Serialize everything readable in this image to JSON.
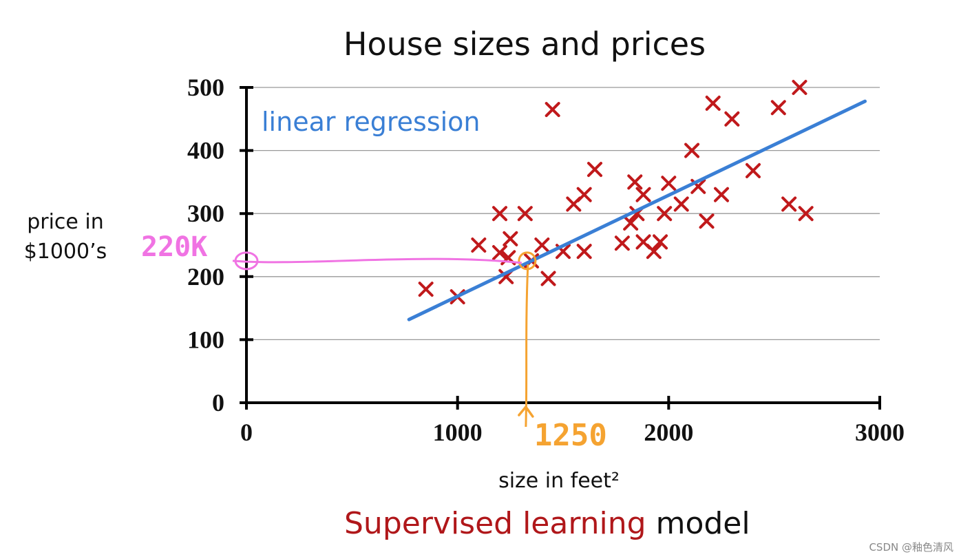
{
  "chart_data": {
    "type": "scatter",
    "title": "House sizes and prices",
    "xlabel": "size in feet²",
    "ylabel_line1": "price in",
    "ylabel_line2": "$1000’s",
    "xlim": [
      0,
      3000
    ],
    "ylim": [
      0,
      500
    ],
    "x_ticks": [
      0,
      1000,
      2000,
      3000
    ],
    "y_ticks": [
      0,
      100,
      200,
      300,
      400,
      500
    ],
    "grid": true,
    "points": [
      {
        "x": 850,
        "y": 180
      },
      {
        "x": 1000,
        "y": 168
      },
      {
        "x": 1100,
        "y": 250
      },
      {
        "x": 1200,
        "y": 300
      },
      {
        "x": 1200,
        "y": 238
      },
      {
        "x": 1230,
        "y": 200
      },
      {
        "x": 1250,
        "y": 260
      },
      {
        "x": 1240,
        "y": 230
      },
      {
        "x": 1320,
        "y": 300
      },
      {
        "x": 1350,
        "y": 225
      },
      {
        "x": 1400,
        "y": 250
      },
      {
        "x": 1430,
        "y": 197
      },
      {
        "x": 1450,
        "y": 465
      },
      {
        "x": 1500,
        "y": 240
      },
      {
        "x": 1550,
        "y": 315
      },
      {
        "x": 1600,
        "y": 330
      },
      {
        "x": 1600,
        "y": 240
      },
      {
        "x": 1650,
        "y": 370
      },
      {
        "x": 1780,
        "y": 253
      },
      {
        "x": 1820,
        "y": 285
      },
      {
        "x": 1840,
        "y": 350
      },
      {
        "x": 1850,
        "y": 300
      },
      {
        "x": 1880,
        "y": 330
      },
      {
        "x": 1880,
        "y": 255
      },
      {
        "x": 1930,
        "y": 240
      },
      {
        "x": 1960,
        "y": 255
      },
      {
        "x": 1980,
        "y": 300
      },
      {
        "x": 2000,
        "y": 348
      },
      {
        "x": 2060,
        "y": 315
      },
      {
        "x": 2110,
        "y": 400
      },
      {
        "x": 2140,
        "y": 343
      },
      {
        "x": 2180,
        "y": 288
      },
      {
        "x": 2210,
        "y": 475
      },
      {
        "x": 2250,
        "y": 330
      },
      {
        "x": 2300,
        "y": 450
      },
      {
        "x": 2400,
        "y": 368
      },
      {
        "x": 2520,
        "y": 468
      },
      {
        "x": 2570,
        "y": 315
      },
      {
        "x": 2620,
        "y": 500
      },
      {
        "x": 2650,
        "y": 300
      }
    ],
    "regression_line": {
      "label": "linear regression",
      "x": [
        770,
        2930
      ],
      "y": [
        132,
        478
      ]
    },
    "annotations": {
      "x_value_label": "1250",
      "x_value": 1330,
      "y_value_label": "220K",
      "y_value": 225
    }
  },
  "caption": {
    "highlight": "Supervised learning",
    "rest": " model"
  },
  "watermark": "CSDN @釉色清风",
  "colors": {
    "points": "#c0191b",
    "regression": "#3a7fd5",
    "axis": "#000000",
    "grid": "#999999",
    "x_annotation": "#f5a331",
    "y_annotation": "#f073e3",
    "caption_highlight": "#b0171a",
    "watermark": "#888888"
  }
}
